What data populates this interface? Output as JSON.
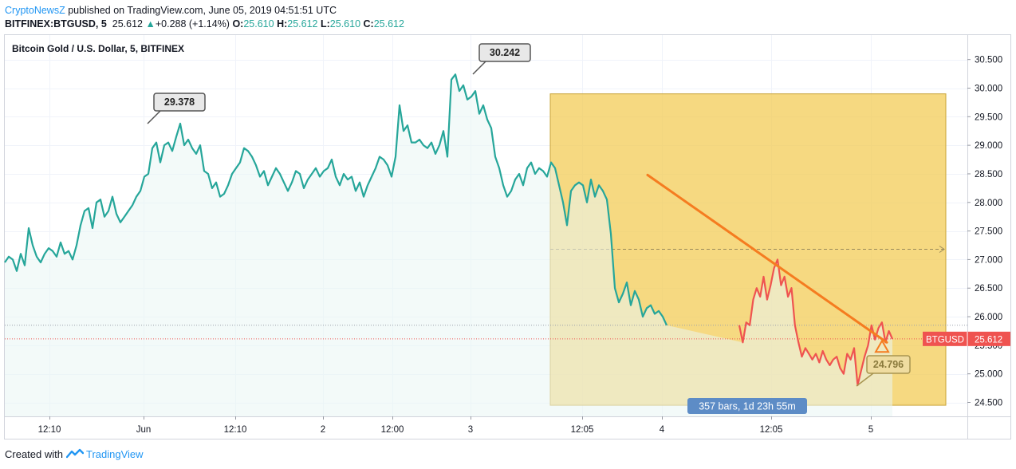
{
  "header": {
    "author": "CryptoNewsZ",
    "published_text": "published on TradingView.com, June 05, 2019 04:51:51 UTC",
    "symbol": "BITFINEX:BTGUSD, 5",
    "last": "25.612",
    "change_arrow": "▲",
    "change": "+0.288 (+1.14%)",
    "o_label": "O:",
    "o_value": "25.610",
    "h_label": "H:",
    "h_value": "25.612",
    "l_label": "L:",
    "l_value": "25.610",
    "c_label": "C:",
    "c_value": "25.612"
  },
  "footer": {
    "created_with": "Created with",
    "brand": "TradingView",
    "brand_icon": "tradingview-logo-icon"
  },
  "colors": {
    "line": "#26a69a",
    "line_down": "#ef5350",
    "area": "#e9f5f4",
    "box": "#f2c94c",
    "trend": "#f57c20",
    "price_tag": "#ef5350",
    "range_label": "#5d8cc6"
  },
  "chart_data": {
    "type": "line",
    "title": "Bitcoin Gold / U.S. Dollar, 5, BITFINEX",
    "ylim": [
      24.3,
      30.85
    ],
    "y_ticks": [
      "30.500",
      "30.000",
      "29.500",
      "29.000",
      "28.500",
      "28.000",
      "27.500",
      "27.000",
      "26.500",
      "26.000",
      "25.500",
      "25.000",
      "24.500"
    ],
    "y_tick_values": [
      30.5,
      30.0,
      29.5,
      29.0,
      28.5,
      28.0,
      27.5,
      27.0,
      26.5,
      26.0,
      25.5,
      25.0,
      24.5
    ],
    "x_ticks": [
      "12:10",
      "Jun",
      "12:10",
      "2",
      "12:00",
      "3",
      "12:05",
      "4",
      "12:05",
      "5"
    ],
    "x_tick_index": [
      62,
      180,
      295,
      405,
      492,
      590,
      730,
      830,
      967,
      1092
    ],
    "grid": true,
    "series": [
      {
        "values": [
          26.95,
          27.05,
          27.0,
          26.8,
          27.1,
          26.9,
          27.55,
          27.25,
          27.05,
          26.95,
          27.1,
          27.2,
          27.15,
          27.05,
          27.3,
          27.1,
          27.15,
          27.0,
          27.25,
          27.6,
          27.85,
          27.9,
          27.55,
          28.0,
          28.05,
          27.75,
          27.85,
          28.1,
          27.8,
          27.65,
          27.75,
          27.85,
          27.95,
          28.1,
          28.2,
          28.45,
          28.5,
          28.95,
          29.05,
          28.7,
          29.0,
          29.05,
          28.9,
          29.15,
          29.38,
          29.0,
          29.1,
          28.95,
          28.85,
          29.0,
          28.55,
          28.5,
          28.25,
          28.35,
          28.1,
          28.15,
          28.3,
          28.5,
          28.6,
          28.7,
          28.95,
          28.9,
          28.8,
          28.65,
          28.45,
          28.55,
          28.3,
          28.45,
          28.6,
          28.5,
          28.35,
          28.2,
          28.35,
          28.55,
          28.5,
          28.25,
          28.4,
          28.5,
          28.6,
          28.45,
          28.55,
          28.6,
          28.75,
          28.45,
          28.3,
          28.5,
          28.4,
          28.45,
          28.2,
          28.35,
          28.1,
          28.3,
          28.45,
          28.6,
          28.8,
          28.75,
          28.65,
          28.45,
          28.8,
          29.7,
          29.25,
          29.35,
          29.05,
          29.05,
          29.1,
          29.0,
          28.95,
          29.05,
          28.85,
          29.0,
          29.25,
          28.8,
          30.15,
          30.24,
          29.95,
          30.05,
          29.8,
          29.85,
          29.95,
          29.55,
          29.7,
          29.45,
          29.3,
          28.8,
          28.6,
          28.3,
          28.1,
          28.2,
          28.4,
          28.5,
          28.3,
          28.6,
          28.7,
          28.5,
          28.6,
          28.55,
          28.45,
          28.7,
          28.6,
          28.3,
          28.0,
          27.6,
          28.2,
          28.3,
          28.35,
          28.3,
          28.0,
          28.4,
          28.1,
          28.3,
          28.2,
          28.05,
          27.45,
          26.5,
          26.25,
          26.4,
          26.6,
          26.2,
          26.45,
          26.3,
          26.0,
          26.15,
          26.2,
          26.05,
          26.1,
          26.0,
          25.85
        ],
        "start_index": 6,
        "end_index": 927,
        "step": 5.0
      }
    ],
    "down_series": {
      "values": [
        25.85,
        25.55,
        25.9,
        25.85,
        26.3,
        26.5,
        26.35,
        26.7,
        26.3,
        26.55,
        26.85,
        27.0,
        26.55,
        26.7,
        26.35,
        26.5,
        25.85,
        25.55,
        25.3,
        25.45,
        25.35,
        25.25,
        25.35,
        25.2,
        25.4,
        25.25,
        25.15,
        25.25,
        25.3,
        25.1,
        25.0,
        25.35,
        25.25,
        25.45,
        24.8,
        25.05,
        25.3,
        25.5,
        25.85,
        25.6,
        25.8,
        25.9,
        25.55,
        25.75,
        25.61
      ],
      "start_index": 927,
      "end_index": 1119
    },
    "callouts": [
      {
        "label": "29.378",
        "index": 185,
        "value": 29.378
      },
      {
        "label": "30.242",
        "index": 592,
        "value": 30.242
      },
      {
        "label": "24.796",
        "index": 1072,
        "value": 24.796
      }
    ],
    "last_price": {
      "label": "BTGUSD",
      "value": "25.612",
      "num": 25.612
    },
    "dotted_level": 25.85,
    "range_box": {
      "start_index": 690,
      "end_index": 1186,
      "top": 29.9,
      "bottom": 24.45,
      "mid": 27.18,
      "label": "357 bars, 1d 23h 55m"
    },
    "trend_line": {
      "from": {
        "index": 812,
        "value": 28.48
      },
      "to": {
        "index": 1112,
        "value": 25.55
      }
    }
  }
}
